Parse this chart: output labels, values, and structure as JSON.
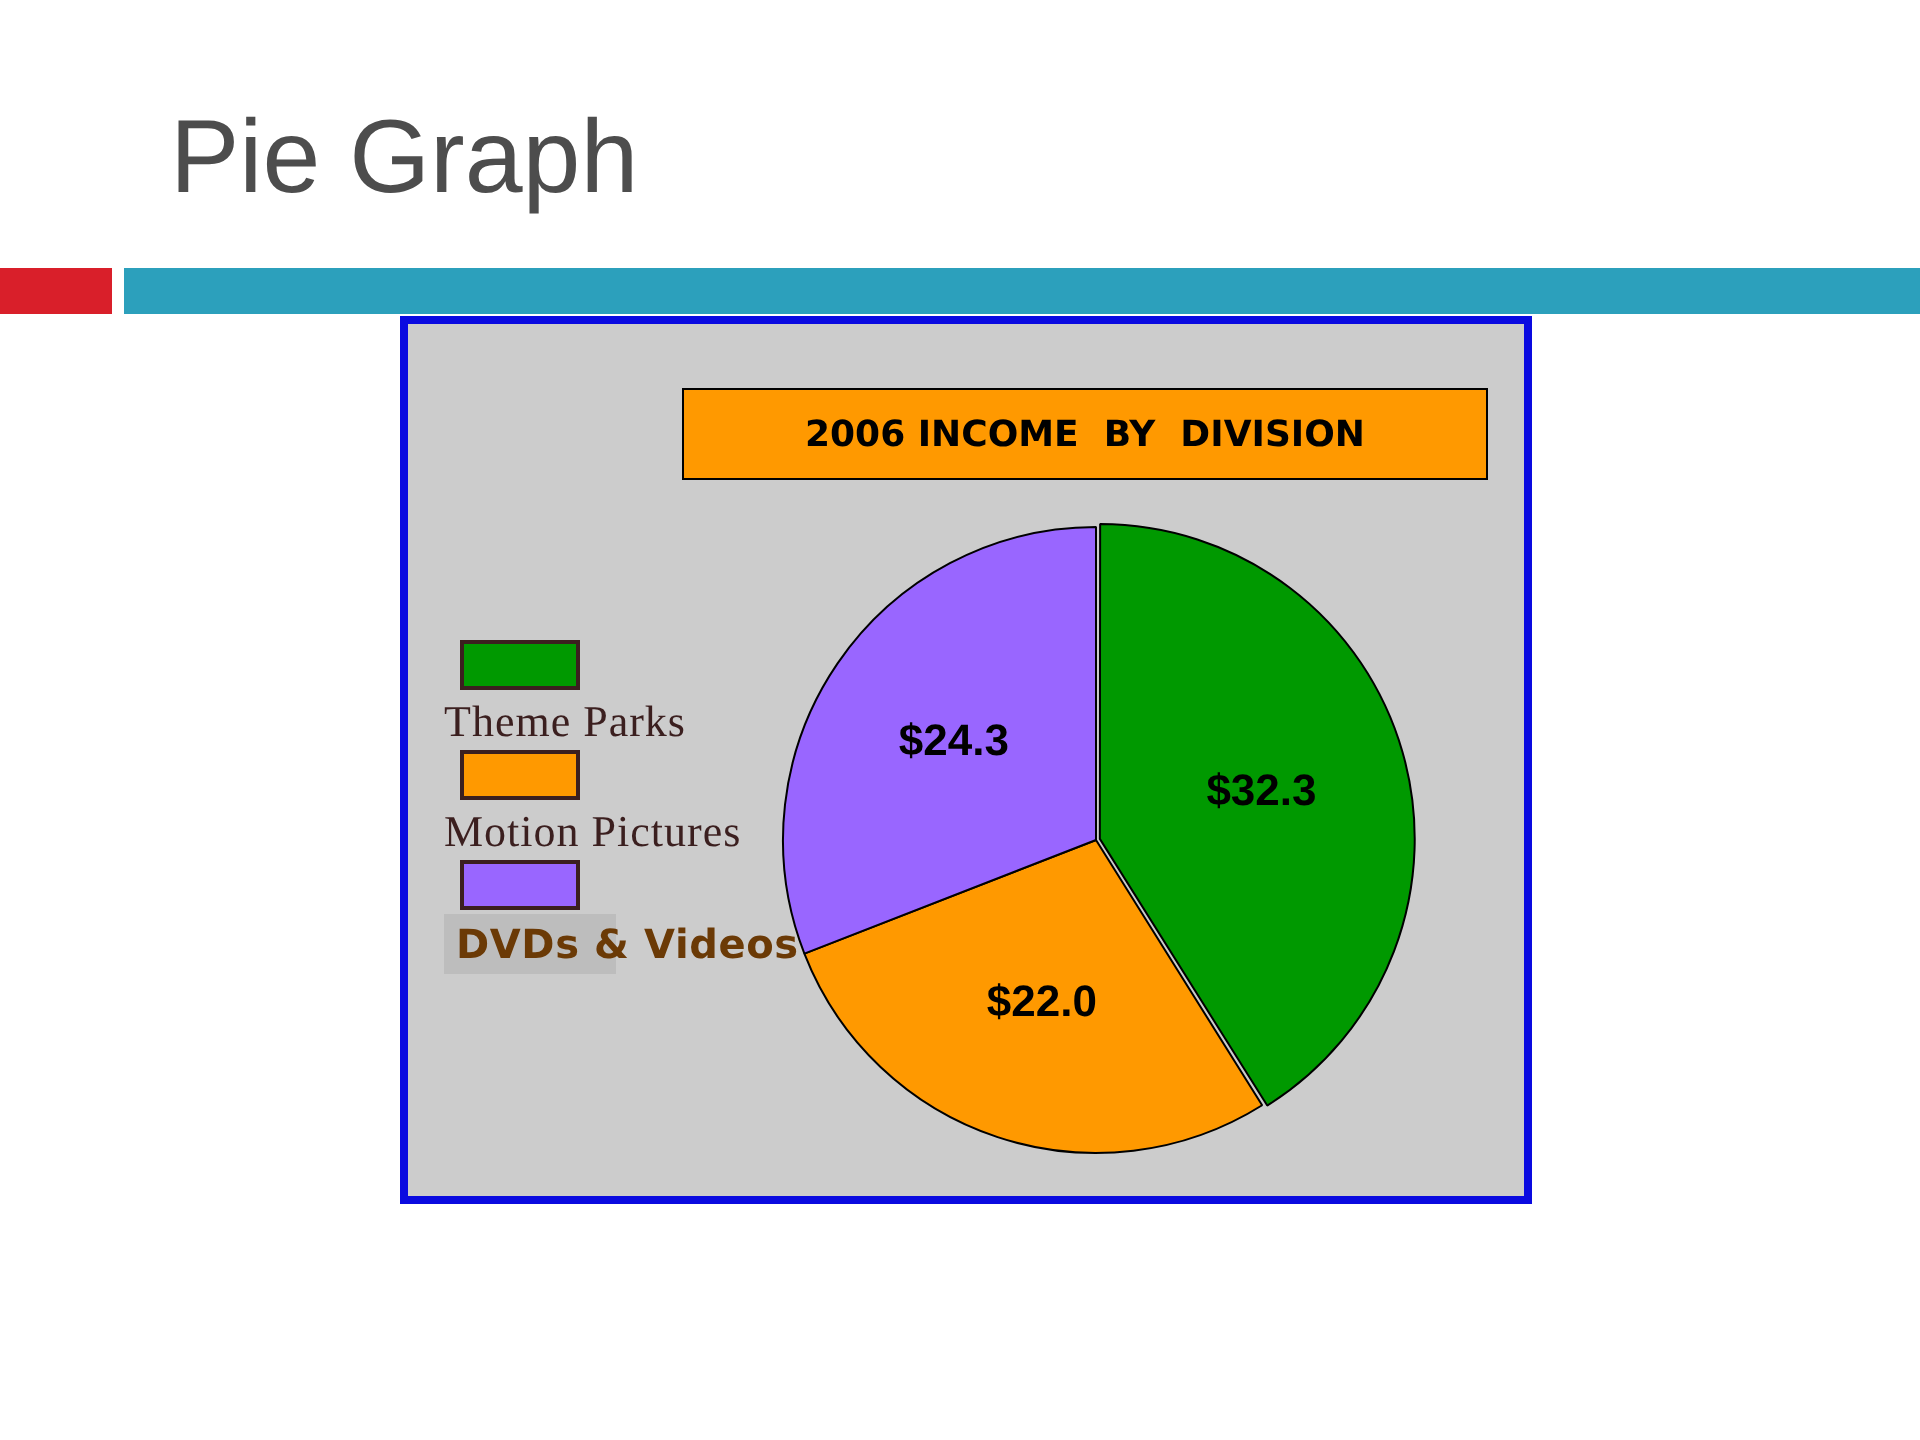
{
  "chart_data": {
    "type": "pie",
    "title": "Pie Graph",
    "subtitle": "2006 INCOME  BY  DIVISION",
    "categories": [
      "Theme Parks",
      "Motion Pictures",
      "DVDs & Videos"
    ],
    "values": [
      32.3,
      22.0,
      24.3
    ],
    "colors": [
      "#009900",
      "#ff9900",
      "#9966ff"
    ],
    "value_labels": [
      "$32.3",
      "$22.0",
      "$24.3"
    ],
    "legend": "left"
  }
}
